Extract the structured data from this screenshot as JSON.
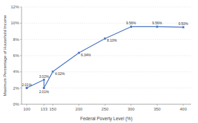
{
  "chart_data": {
    "type": "line",
    "xlabel": "Federal Poverty Level (%)",
    "ylabel": "Maximum Percentage of Household Income",
    "x": [
      100,
      133,
      133,
      150,
      200,
      250,
      300,
      350,
      400
    ],
    "values": [
      2.01,
      3.02,
      2.01,
      4.02,
      6.34,
      8.1,
      9.56,
      9.56,
      9.5
    ],
    "value_labels": [
      "2.01%",
      "3.02%",
      "2.01%",
      "4.02%",
      "6.34%",
      "8.10%",
      "9.56%",
      "9.56%",
      "9.50%"
    ],
    "data_labels": true,
    "color": "#4472c4",
    "marker": "square",
    "xlim": [
      90,
      415
    ],
    "ylim": [
      0,
      12
    ],
    "xticks": [
      100,
      133,
      150,
      200,
      250,
      300,
      350,
      400
    ],
    "yticks": [
      {
        "value": 0,
        "label": "0%"
      },
      {
        "value": 2,
        "label": "2%"
      },
      {
        "value": 4,
        "label": "4%"
      },
      {
        "value": 6,
        "label": "6%"
      },
      {
        "value": 8,
        "label": "8%"
      },
      {
        "value": 10,
        "label": "10%"
      },
      {
        "value": 12,
        "label": "12%"
      }
    ],
    "grid": true
  }
}
